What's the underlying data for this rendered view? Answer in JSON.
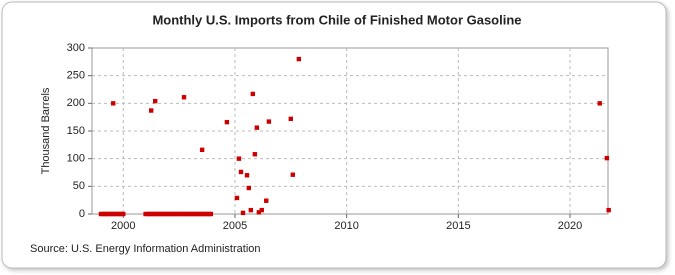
{
  "chart_data": {
    "type": "scatter",
    "title": "Monthly U.S. Imports from Chile of Finished Motor Gasoline",
    "y_label": "Thousand Barrels",
    "source": "Source: U.S. Energy Information Administration",
    "color": "#cc0000",
    "xlim": [
      1998.6,
      2021.7
    ],
    "xticks": [
      2000,
      2005,
      2010,
      2015,
      2020
    ],
    "ylim": [
      0,
      300
    ],
    "yticks": [
      0,
      50,
      100,
      150,
      200,
      250,
      300
    ],
    "grid": true,
    "x": [
      1999.55,
      2001.25,
      2001.43,
      2002.72,
      2003.53,
      2004.64,
      2005.09,
      2005.18,
      2005.27,
      2005.36,
      2005.54,
      2005.62,
      2005.71,
      2005.8,
      2005.89,
      2005.98,
      2006.07,
      2006.2,
      2006.4,
      2006.52,
      2007.5,
      2007.59,
      2007.86,
      2021.33,
      2021.65,
      2021.73,
      1999.0,
      1999.08,
      1999.17,
      1999.25,
      1999.33,
      1999.42,
      1999.5,
      1999.58,
      1999.67,
      1999.75,
      1999.83,
      1999.92,
      2000.0,
      2001.0,
      2001.08,
      2001.17,
      2001.25,
      2001.33,
      2001.42,
      2001.5,
      2001.58,
      2001.67,
      2001.75,
      2001.83,
      2001.92,
      2002.0,
      2002.08,
      2002.17,
      2002.25,
      2002.33,
      2002.42,
      2002.5,
      2002.58,
      2002.67,
      2002.75,
      2002.83,
      2002.92,
      2003.0,
      2003.08,
      2003.17,
      2003.25,
      2003.33,
      2003.42,
      2003.5,
      2003.58,
      2003.67,
      2003.75,
      2003.83,
      2003.92
    ],
    "values": [
      200,
      187,
      204,
      211,
      116,
      166,
      29,
      100,
      76,
      2,
      70,
      47,
      7,
      217,
      108,
      156,
      3,
      7,
      24,
      167,
      172,
      71,
      280,
      200,
      101,
      7,
      0,
      0,
      0,
      0,
      0,
      0,
      0,
      0,
      0,
      0,
      0,
      0,
      0,
      0,
      0,
      0,
      0,
      0,
      0,
      0,
      0,
      0,
      0,
      0,
      0,
      0,
      0,
      0,
      0,
      0,
      0,
      0,
      0,
      0,
      0,
      0,
      0,
      0,
      0,
      0,
      0,
      0,
      0,
      0,
      0,
      0,
      0,
      0,
      0
    ]
  }
}
